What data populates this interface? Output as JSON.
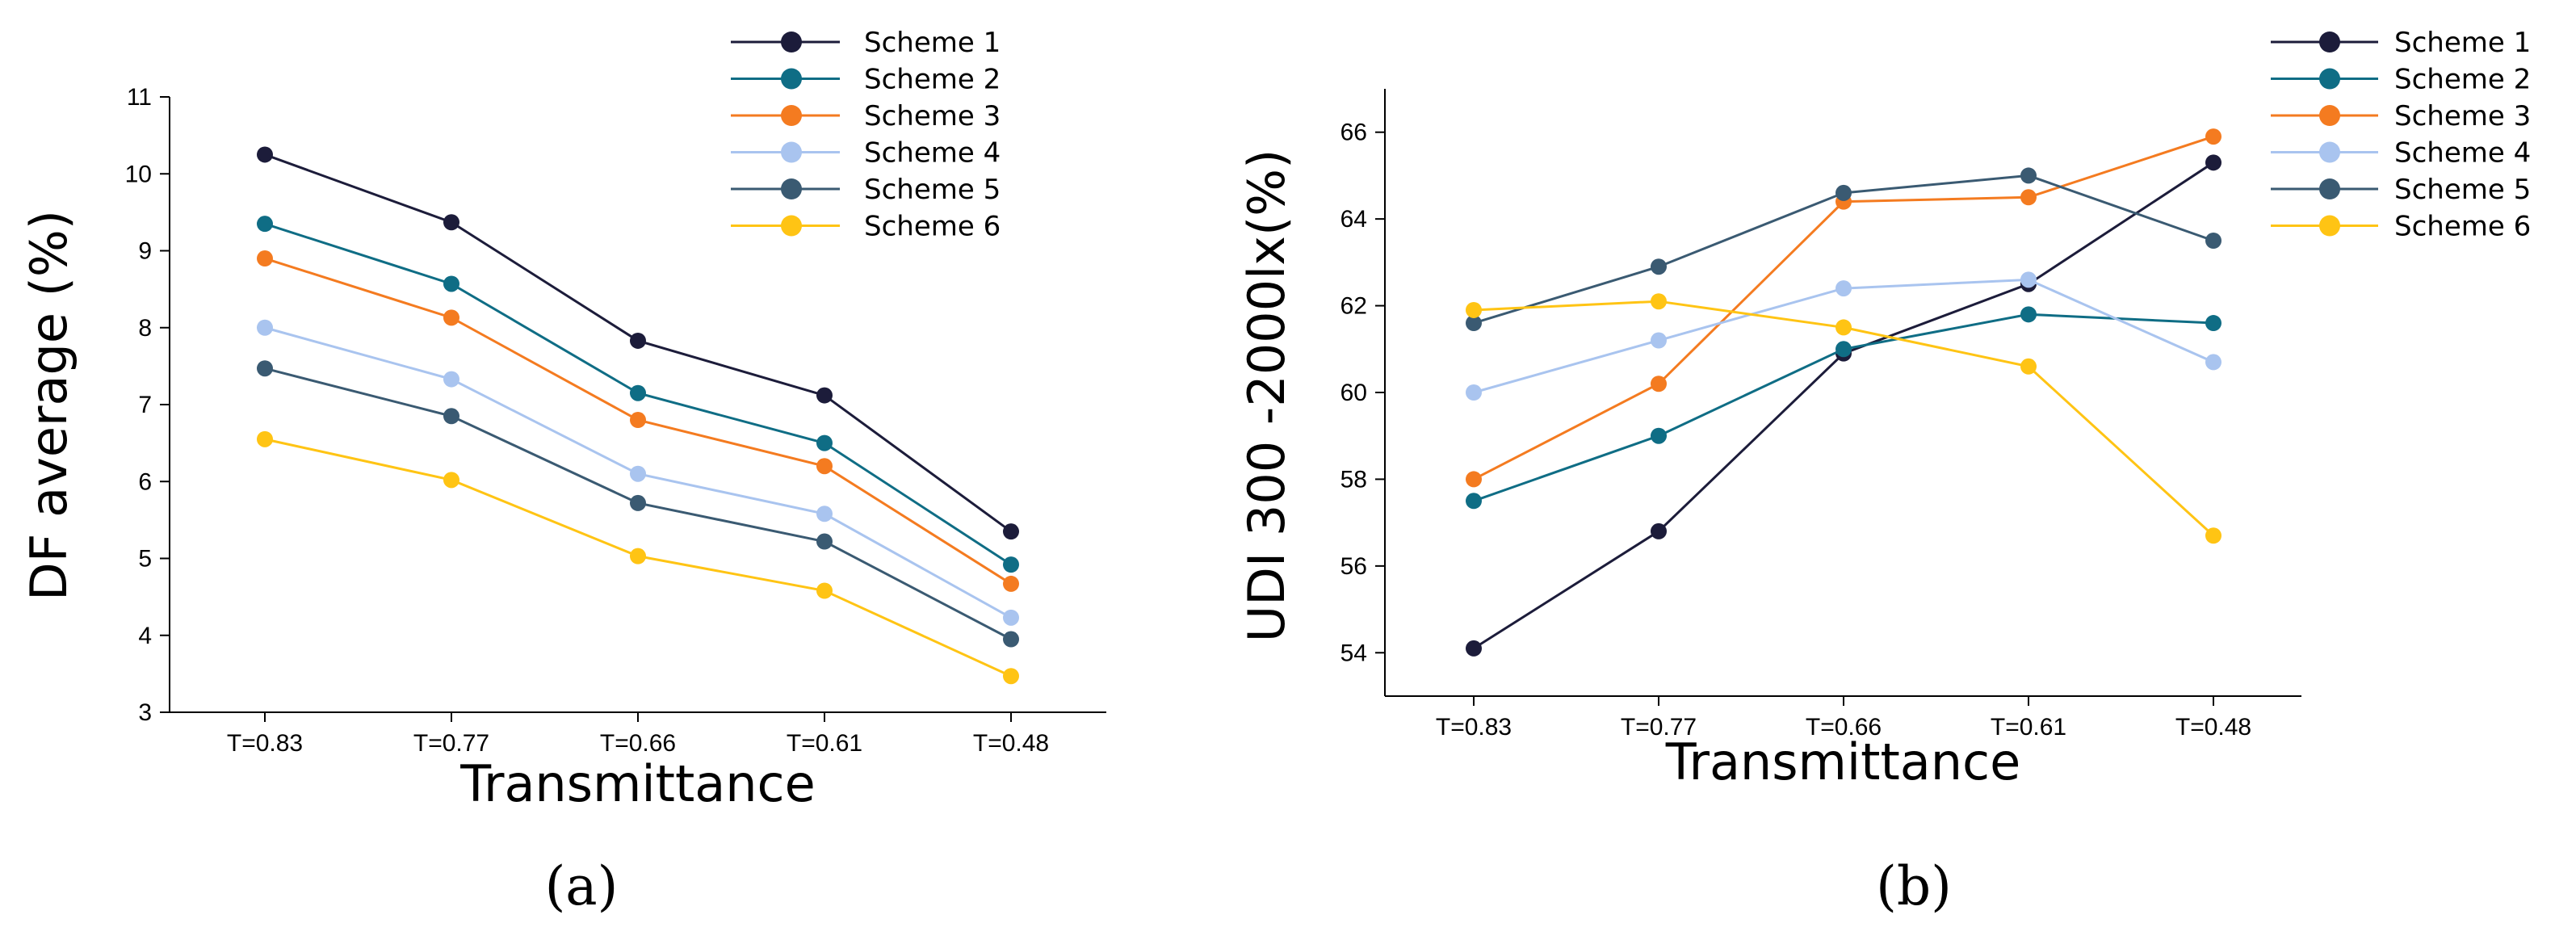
{
  "chart_data": [
    {
      "type": "line",
      "panel_label": "(a)",
      "xlabel": "Transmittance",
      "ylabel": "DF average (%)",
      "categories": [
        "T=0.83",
        "T=0.77",
        "T=0.66",
        "T=0.61",
        "T=0.48"
      ],
      "ylim": [
        3,
        11
      ],
      "yticks": [
        3,
        4,
        5,
        6,
        7,
        8,
        9,
        10,
        11
      ],
      "grid": false,
      "legend_position": "top-right",
      "series": [
        {
          "name": "Scheme 1",
          "color": "#1c1c3a",
          "values": [
            10.25,
            9.37,
            7.83,
            7.12,
            5.35
          ]
        },
        {
          "name": "Scheme 2",
          "color": "#0f6d85",
          "values": [
            9.35,
            8.57,
            7.15,
            6.5,
            4.92
          ]
        },
        {
          "name": "Scheme 3",
          "color": "#f47b20",
          "values": [
            8.9,
            8.13,
            6.8,
            6.2,
            4.67
          ]
        },
        {
          "name": "Scheme 4",
          "color": "#a9c4ef",
          "values": [
            8.0,
            7.33,
            6.1,
            5.58,
            4.23
          ]
        },
        {
          "name": "Scheme 5",
          "color": "#3a5a72",
          "values": [
            7.47,
            6.85,
            5.72,
            5.22,
            3.95
          ]
        },
        {
          "name": "Scheme 6",
          "color": "#ffc414",
          "values": [
            6.55,
            6.02,
            5.03,
            4.58,
            3.47
          ]
        }
      ]
    },
    {
      "type": "line",
      "panel_label": "(b)",
      "xlabel": "Transmittance",
      "ylabel": "UDI 300 -2000lx(%)",
      "categories": [
        "T=0.83",
        "T=0.77",
        "T=0.66",
        "T=0.61",
        "T=0.48"
      ],
      "ylim": [
        53,
        67
      ],
      "yticks": [
        54,
        56,
        58,
        60,
        62,
        64,
        66
      ],
      "grid": false,
      "legend_position": "top-right",
      "series": [
        {
          "name": "Scheme 1",
          "color": "#1c1c3a",
          "values": [
            54.1,
            56.8,
            60.9,
            62.5,
            65.3
          ]
        },
        {
          "name": "Scheme 2",
          "color": "#0f6d85",
          "values": [
            57.5,
            59.0,
            61.0,
            61.8,
            61.6
          ]
        },
        {
          "name": "Scheme 3",
          "color": "#f47b20",
          "values": [
            58.0,
            60.2,
            64.4,
            64.5,
            65.9
          ]
        },
        {
          "name": "Scheme 4",
          "color": "#a9c4ef",
          "values": [
            60.0,
            61.2,
            62.4,
            62.6,
            60.7
          ]
        },
        {
          "name": "Scheme 5",
          "color": "#3a5a72",
          "values": [
            61.6,
            62.9,
            64.6,
            65.0,
            63.5
          ]
        },
        {
          "name": "Scheme 6",
          "color": "#ffc414",
          "values": [
            61.9,
            62.1,
            61.5,
            60.6,
            56.7
          ]
        }
      ]
    }
  ]
}
